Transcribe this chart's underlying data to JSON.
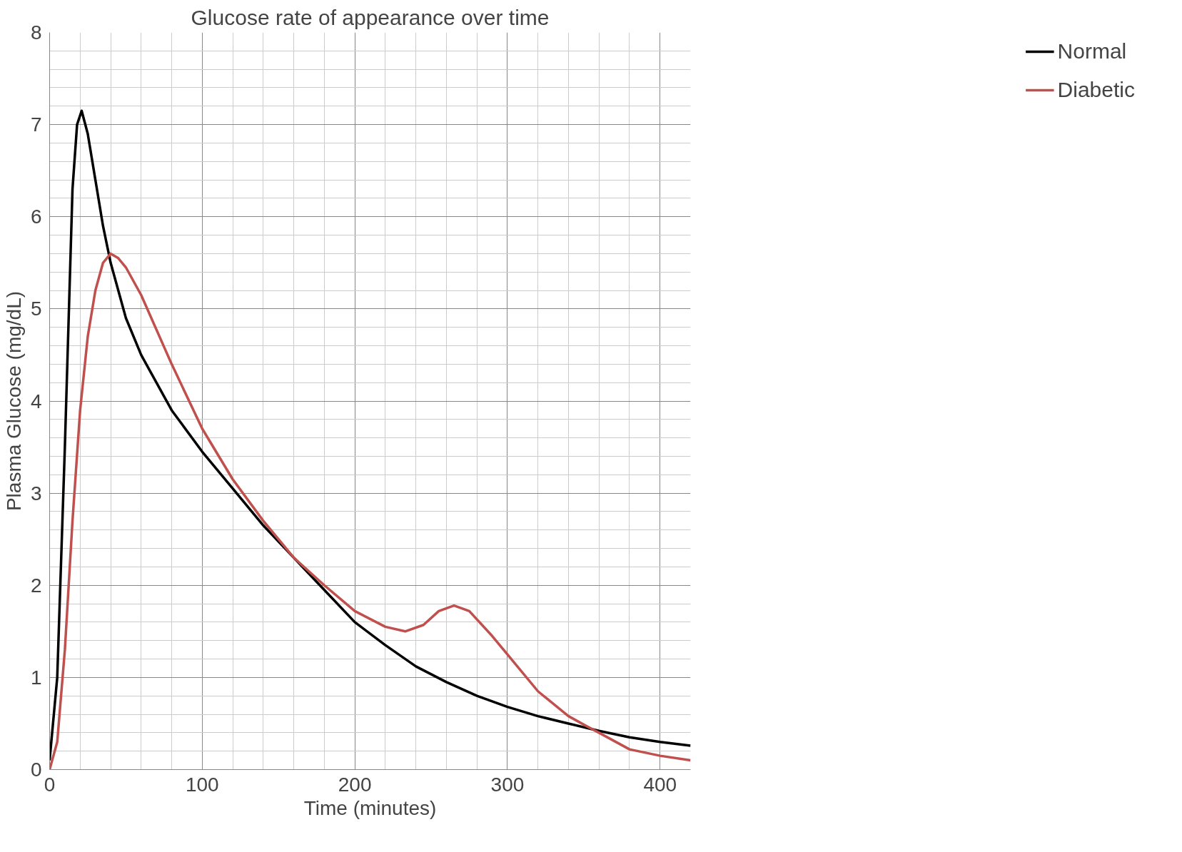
{
  "chart_data": {
    "type": "line",
    "title": "Glucose rate of appearance over time",
    "xlabel": "Time (minutes)",
    "ylabel": "Plasma Glucose (mg/dL)",
    "xlim": [
      0,
      420
    ],
    "ylim": [
      0,
      8
    ],
    "xticks": [
      0,
      100,
      200,
      300,
      400
    ],
    "yticks": [
      0,
      1,
      2,
      3,
      4,
      5,
      6,
      7,
      8
    ],
    "grid": true,
    "legend": "right",
    "line_style": "solid",
    "series": [
      {
        "name": "Normal",
        "color": "#000000",
        "x": [
          0,
          5,
          10,
          15,
          18,
          21,
          25,
          30,
          35,
          40,
          50,
          60,
          80,
          100,
          120,
          140,
          160,
          180,
          200,
          220,
          240,
          260,
          280,
          300,
          320,
          340,
          360,
          380,
          400,
          420
        ],
        "values": [
          0.1,
          1,
          3.5,
          6.3,
          7.0,
          7.15,
          6.9,
          6.4,
          5.9,
          5.5,
          4.9,
          4.5,
          3.9,
          3.45,
          3.05,
          2.65,
          2.3,
          1.95,
          1.6,
          1.35,
          1.12,
          0.95,
          0.8,
          0.68,
          0.58,
          0.5,
          0.42,
          0.35,
          0.3,
          0.26
        ]
      },
      {
        "name": "Diabetic",
        "color": "#c0504d",
        "x": [
          0,
          5,
          10,
          15,
          20,
          25,
          30,
          35,
          40,
          45,
          50,
          60,
          80,
          100,
          120,
          140,
          160,
          180,
          200,
          220,
          233,
          245,
          255,
          265,
          275,
          290,
          300,
          320,
          340,
          352,
          360,
          380,
          400,
          420
        ],
        "values": [
          0,
          0.3,
          1.3,
          2.7,
          3.9,
          4.7,
          5.2,
          5.5,
          5.6,
          5.55,
          5.45,
          5.15,
          4.4,
          3.7,
          3.15,
          2.7,
          2.3,
          2.0,
          1.72,
          1.55,
          1.5,
          1.57,
          1.72,
          1.78,
          1.72,
          1.45,
          1.25,
          0.85,
          0.58,
          0.47,
          0.4,
          0.22,
          0.15,
          0.1
        ]
      }
    ]
  }
}
